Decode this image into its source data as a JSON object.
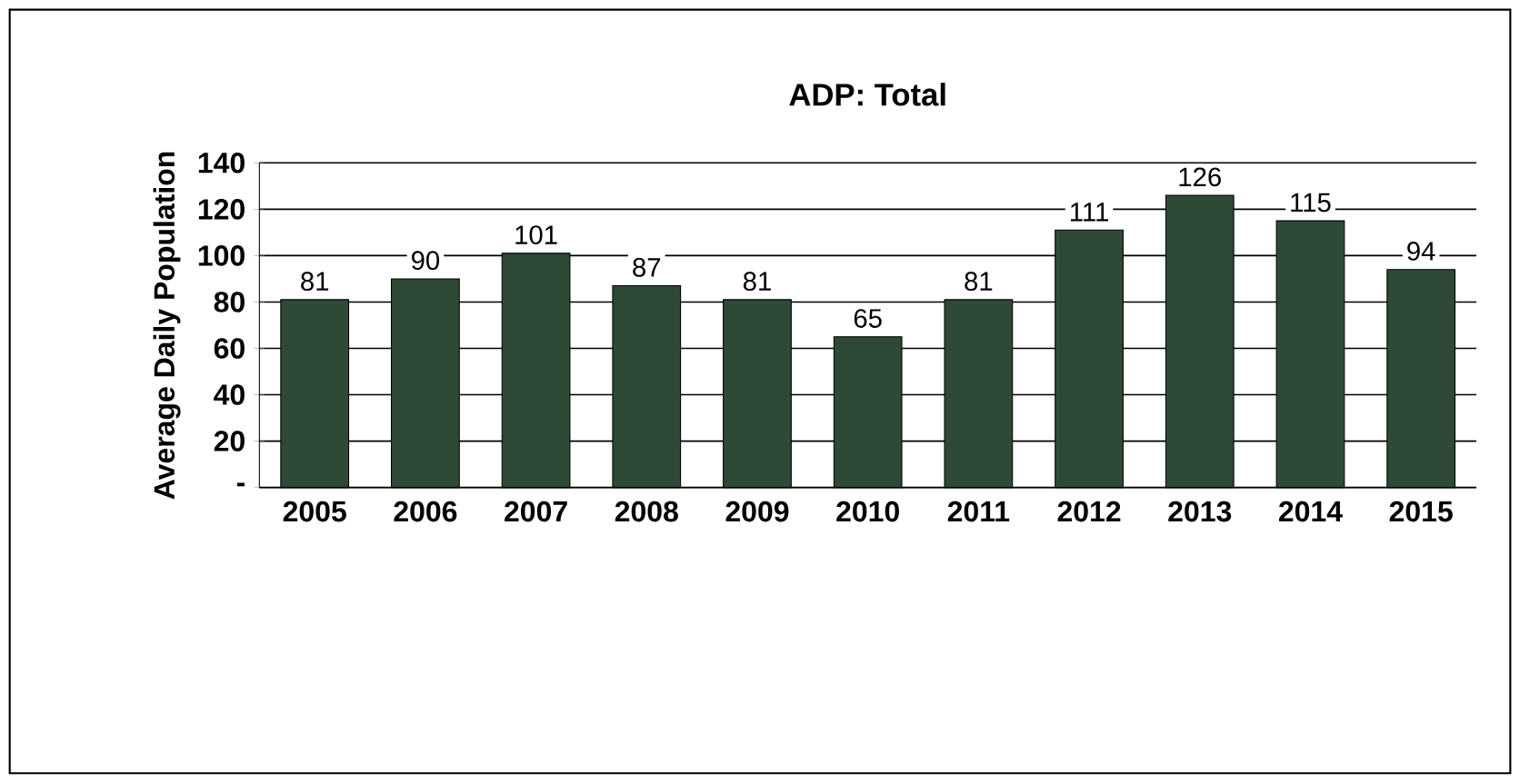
{
  "chart_data": {
    "type": "bar",
    "title": "ADP: Total",
    "ylabel": "Average Daily Population",
    "categories": [
      "2005",
      "2006",
      "2007",
      "2008",
      "2009",
      "2010",
      "2011",
      "2012",
      "2013",
      "2014",
      "2015"
    ],
    "values": [
      81,
      90,
      101,
      87,
      81,
      65,
      81,
      111,
      126,
      115,
      94
    ],
    "color": "#2e4a37",
    "ylim": [
      0,
      140
    ],
    "yticks": [
      {
        "value": 0,
        "label": "-"
      },
      20,
      40,
      60,
      80,
      100,
      120,
      140
    ],
    "grid": "y",
    "data_labels": true
  }
}
